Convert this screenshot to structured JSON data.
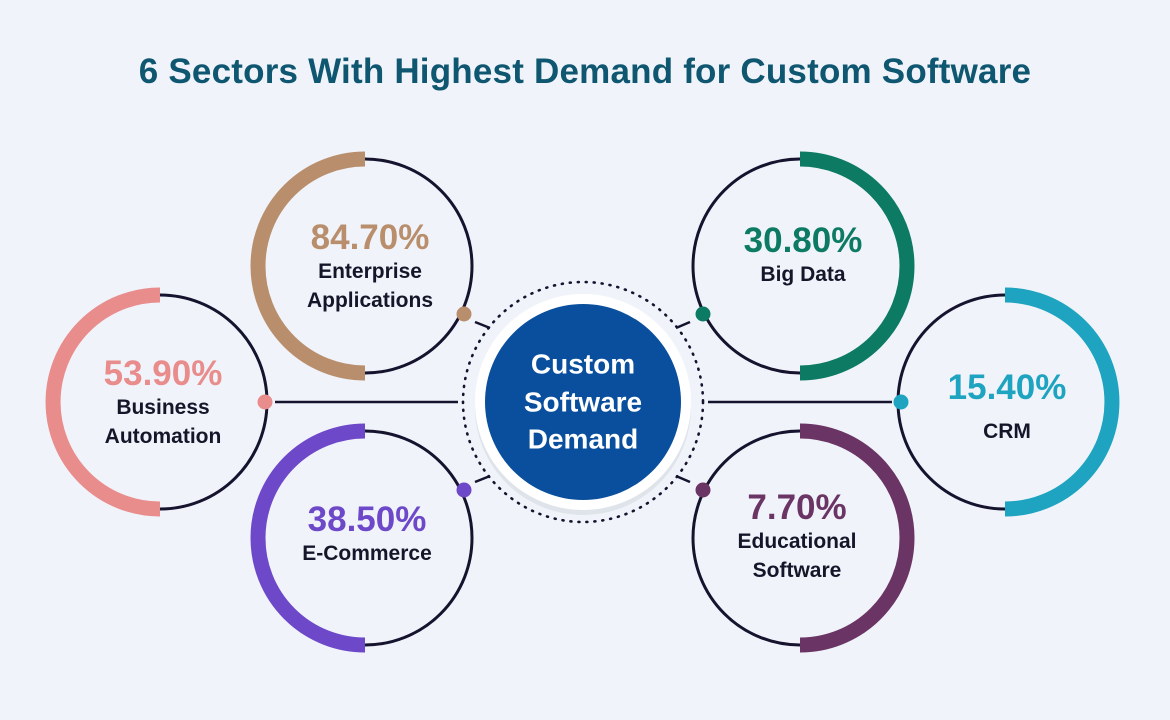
{
  "title": "6 Sectors With Highest Demand for Custom Software",
  "center": {
    "line1": "Custom",
    "line2": "Software",
    "line3": "Demand",
    "color": "#0a4f9d"
  },
  "sectors": [
    {
      "id": "enterprise",
      "pct": "84.70%",
      "line1": "Enterprise",
      "line2": "Applications",
      "color": "#b98e6c"
    },
    {
      "id": "big-data",
      "pct": "30.80%",
      "line1": "Big Data",
      "line2": "",
      "color": "#0d7a63"
    },
    {
      "id": "business",
      "pct": "53.90%",
      "line1": "Business",
      "line2": "Automation",
      "color": "#e88c8c"
    },
    {
      "id": "crm",
      "pct": "15.40%",
      "line1": "CRM",
      "line2": "",
      "color": "#1ea3c0"
    },
    {
      "id": "ecommerce",
      "pct": "38.50%",
      "line1": "E-Commerce",
      "line2": "",
      "color": "#6d48c9"
    },
    {
      "id": "educational",
      "pct": "7.70%",
      "line1": "Educational",
      "line2": "Software",
      "color": "#6a3464"
    }
  ]
}
